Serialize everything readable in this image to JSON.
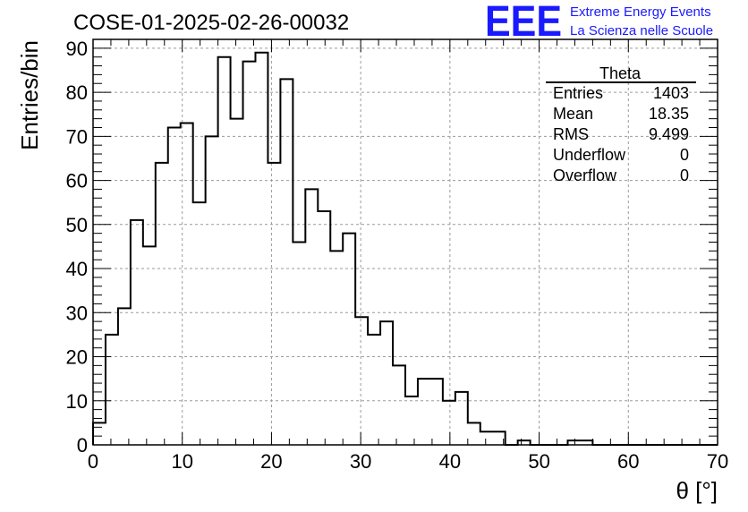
{
  "chart_data": {
    "type": "bar",
    "title": "COSE-01-2025-02-26-00032",
    "xlabel": "θ [°]",
    "ylabel": "Entries/bin",
    "xlim": [
      0,
      70
    ],
    "ylim": [
      0,
      92
    ],
    "bin_width": 1.4,
    "grid": true,
    "x_ticks": [
      0,
      10,
      20,
      30,
      40,
      50,
      60,
      70
    ],
    "y_ticks": [
      0,
      10,
      20,
      30,
      40,
      50,
      60,
      70,
      80,
      90
    ],
    "values": [
      5,
      25,
      31,
      51,
      45,
      64,
      72,
      73,
      55,
      70,
      88,
      74,
      87,
      89,
      64,
      83,
      46,
      58,
      53,
      44,
      48,
      29,
      25,
      28,
      18,
      11,
      15,
      15,
      10,
      12,
      5,
      3,
      3,
      0,
      1,
      0,
      0,
      0,
      1,
      1,
      0,
      0,
      0,
      0,
      0,
      0,
      0,
      0,
      0,
      0
    ],
    "stats": {
      "name": "Theta",
      "rows": [
        {
          "label": "Entries",
          "value": "1403"
        },
        {
          "label": "Mean",
          "value": "18.35"
        },
        {
          "label": "RMS",
          "value": "9.499"
        },
        {
          "label": "Underflow",
          "value": "0"
        },
        {
          "label": "Overflow",
          "value": "0"
        }
      ]
    }
  },
  "logo": {
    "text": "EEE",
    "line1": "Extreme Energy Events",
    "line2": "La Scienza nelle Scuole",
    "color": "#1a1aff"
  }
}
